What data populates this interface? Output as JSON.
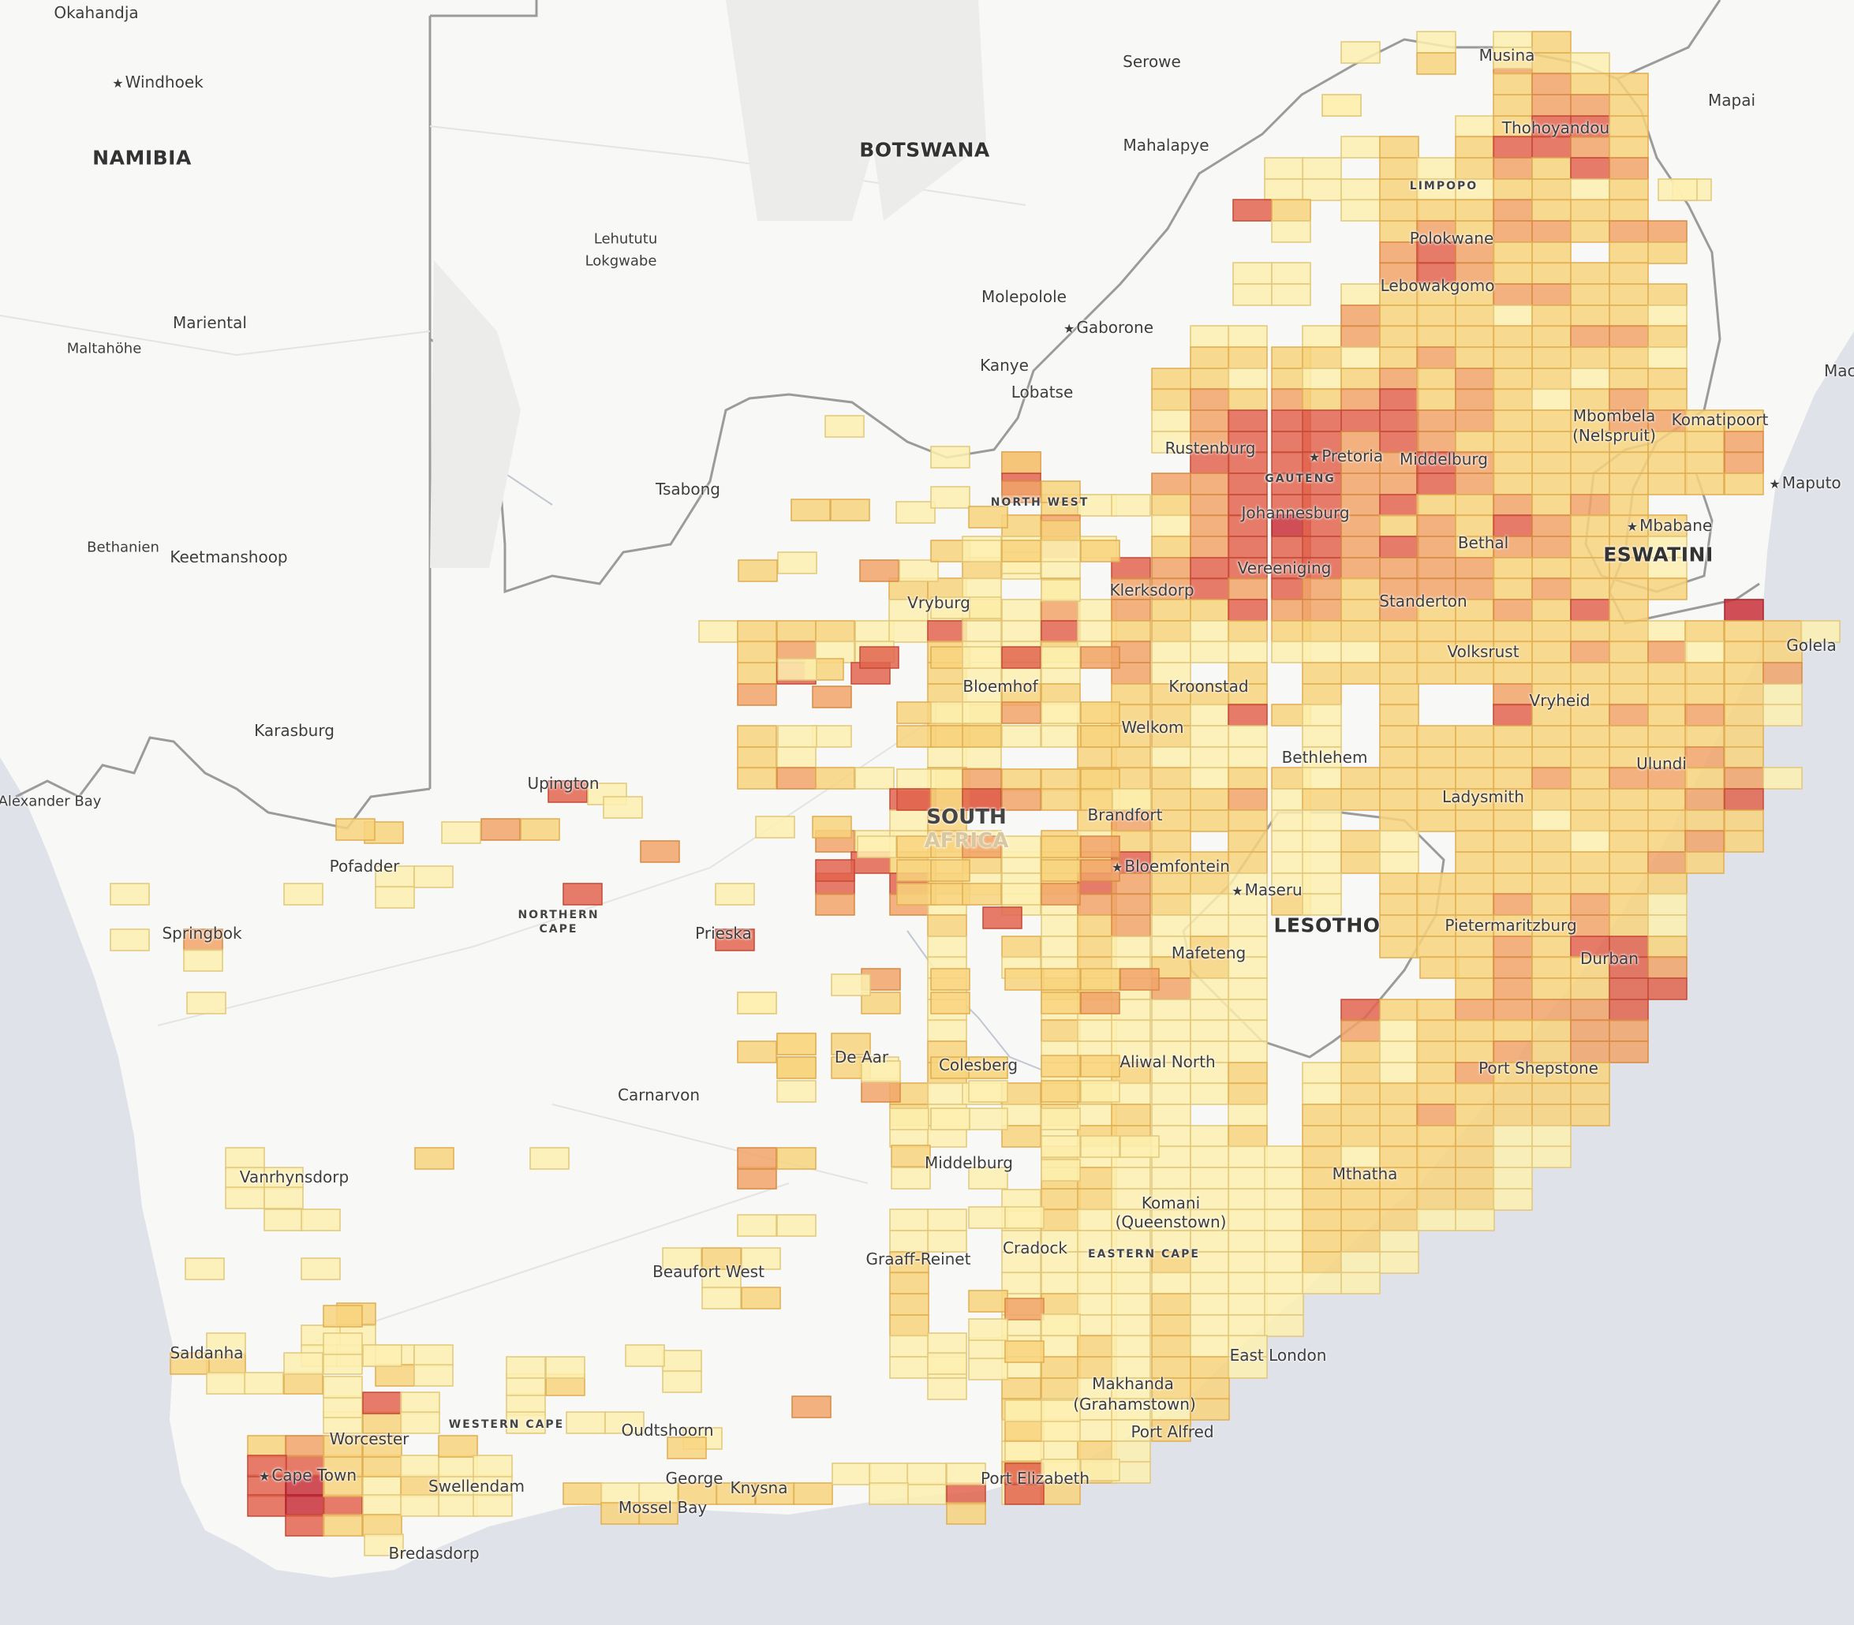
{
  "map": {
    "countries": [
      {
        "name": "NAMIBIA"
      },
      {
        "name": "BOTSWANA"
      },
      {
        "name": "LESOTHO"
      },
      {
        "name": "ESWATINI"
      },
      {
        "name": "SOUTH"
      },
      {
        "name": "AFRICA"
      }
    ],
    "regions": [
      "LIMPOPO",
      "GAUTENG",
      "NORTH WEST",
      "NORTHERN",
      "CAPE",
      "EASTERN CAPE",
      "WESTERN CAPE"
    ],
    "places": [
      "Okahandja",
      "Windhoek",
      "Mariental",
      "Maltahöhe",
      "Bethanien",
      "Keetmanshoop",
      "Karasburg",
      "Alexander Bay",
      "Serowe",
      "Mahalapye",
      "Lehututu",
      "Lokgwabe",
      "Molepolole",
      "Gaborone",
      "Kanye",
      "Lobatse",
      "Tsabong",
      "Mapai",
      "Maci",
      "Musina",
      "Thohoyandou",
      "Polokwane",
      "Lebowakgomo",
      "Mbombela",
      "(Nelspruit)",
      "Komatipoort",
      "Maputo",
      "Mbabane",
      "Rustenburg",
      "Pretoria",
      "Middelburg",
      "Johannesburg",
      "Vereeniging",
      "Bethal",
      "Klerksdorp",
      "Standerton",
      "Golela",
      "Vryburg",
      "Volksrust",
      "Bloemhof",
      "Kroonstad",
      "Vryheid",
      "Welkom",
      "Ulundi",
      "Upington",
      "Bethlehem",
      "Ladysmith",
      "Brandfort",
      "Bloemfontein",
      "Maseru",
      "Pofadder",
      "Springbok",
      "Prieska",
      "Pietermaritzburg",
      "Mafeteng",
      "Durban",
      "De Aar",
      "Colesberg",
      "Aliwal North",
      "Port Shepstone",
      "Carnarvon",
      "Vanrhynsdorp",
      "Middelburg",
      "Mthatha",
      "Komani",
      "(Queenstown)",
      "Cradock",
      "Graaff-Reinet",
      "Beaufort West",
      "Saldanha",
      "East London",
      "Makhanda",
      "(Grahamstown)",
      "Worcester",
      "Oudtshoorn",
      "Port Alfred",
      "Cape Town",
      "Swellendam",
      "George",
      "Knysna",
      "Port Elizabeth",
      "Mossel Bay",
      "Bredasdorp"
    ]
  },
  "legend": {
    "colors": [
      "#fdf0b0",
      "#f8d37e",
      "#f1a56a",
      "#e2654f",
      "#c9313b"
    ]
  },
  "heat_cells": "y:x-list encoding of grid occupancy per row of ~1:1 squares, intensity 1-5"
}
